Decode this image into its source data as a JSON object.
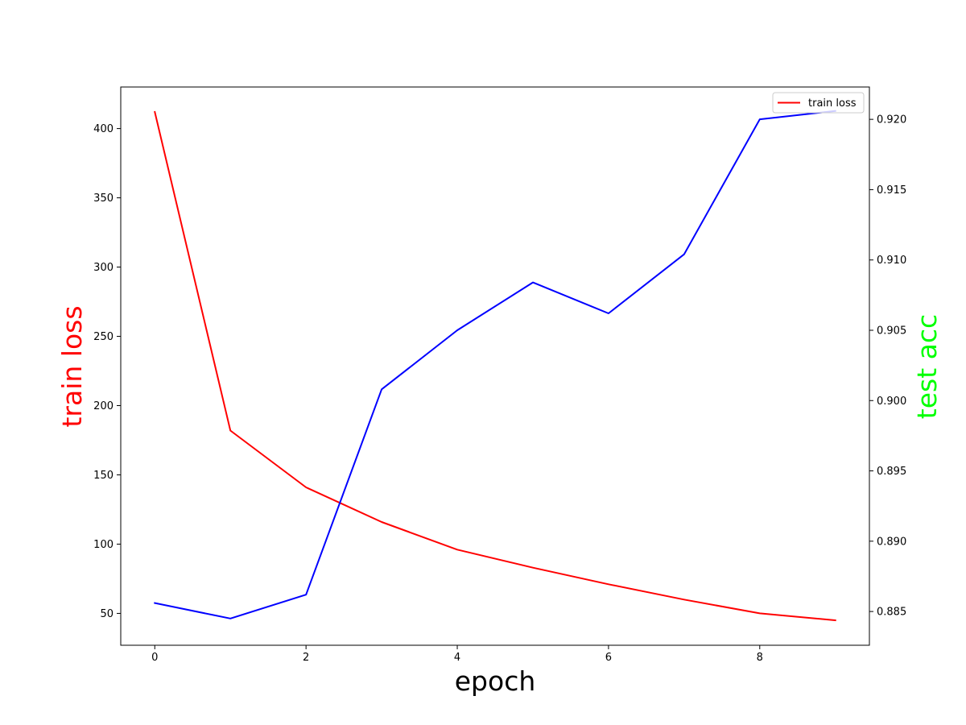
{
  "chart_data": {
    "type": "line",
    "x": [
      0,
      1,
      2,
      3,
      4,
      5,
      6,
      7,
      8,
      9
    ],
    "xlabel": "epoch",
    "xlim": [
      -0.45,
      9.45
    ],
    "xticks": [
      0,
      2,
      4,
      6,
      8
    ],
    "ylabel_left": "train loss",
    "ylabel_left_color": "#ff0000",
    "ylim_left": [
      27,
      430
    ],
    "yticks_left": [
      50,
      100,
      150,
      200,
      250,
      300,
      350,
      400
    ],
    "ylabel_right": "test acc",
    "ylabel_right_color": "#00ff00",
    "ylim_right": [
      0.8826,
      0.9223
    ],
    "yticks_right": [
      "0.885",
      "0.890",
      "0.895",
      "0.900",
      "0.905",
      "0.910",
      "0.915",
      "0.920"
    ],
    "series": [
      {
        "name": "train loss",
        "axis": "left",
        "color": "#ff0000",
        "values": [
          412,
          182,
          141,
          116,
          96,
          83,
          71,
          60,
          50,
          45
        ]
      },
      {
        "axis": "right",
        "color": "#0000ff",
        "values": [
          0.8856,
          0.8845,
          0.8862,
          0.9008,
          0.905,
          0.9084,
          0.9062,
          0.9104,
          0.92,
          0.9206
        ]
      }
    ],
    "legend": {
      "entries": [
        "train loss"
      ],
      "placement": "top-right"
    },
    "grid": false
  }
}
